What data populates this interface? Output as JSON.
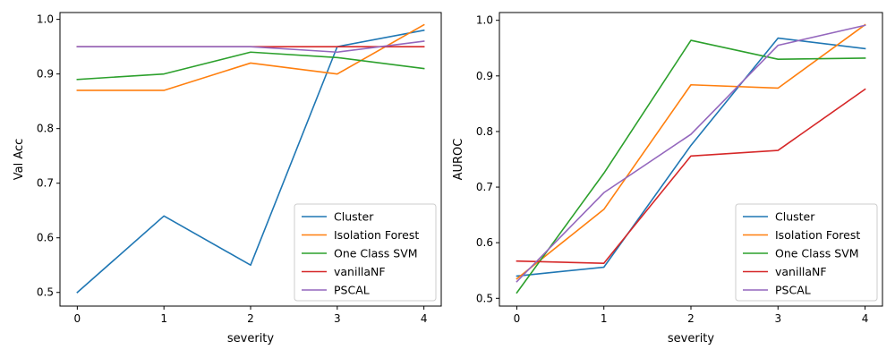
{
  "chart_data": [
    {
      "type": "line",
      "xlabel": "severity",
      "ylabel": "Val Acc",
      "x": [
        0,
        1,
        2,
        3,
        4
      ],
      "xticks": [
        "0",
        "1",
        "2",
        "3",
        "4"
      ],
      "ylim": [
        0.475,
        1.0125
      ],
      "yticks": [
        "0.5",
        "0.6",
        "0.7",
        "0.8",
        "0.9",
        "1.0"
      ],
      "grid": false,
      "legend_position": "lower-right",
      "series": [
        {
          "name": "Cluster",
          "color": "#1f77b4",
          "values": [
            0.5,
            0.64,
            0.55,
            0.95,
            0.98
          ]
        },
        {
          "name": "Isolation Forest",
          "color": "#ff7f0e",
          "values": [
            0.87,
            0.87,
            0.92,
            0.9,
            0.99
          ]
        },
        {
          "name": "One Class SVM",
          "color": "#2ca02c",
          "values": [
            0.89,
            0.9,
            0.94,
            0.93,
            0.91
          ]
        },
        {
          "name": "vanillaNF",
          "color": "#d62728",
          "values": [
            0.95,
            0.95,
            0.95,
            0.95,
            0.95
          ]
        },
        {
          "name": "PSCAL",
          "color": "#9467bd",
          "values": [
            0.95,
            0.95,
            0.95,
            0.94,
            0.96
          ]
        }
      ]
    },
    {
      "type": "line",
      "xlabel": "severity",
      "ylabel": "AUROC",
      "x": [
        0,
        1,
        2,
        3,
        4
      ],
      "xticks": [
        "0",
        "1",
        "2",
        "3",
        "4"
      ],
      "ylim": [
        0.486,
        1.014
      ],
      "yticks": [
        "0.5",
        "0.6",
        "0.7",
        "0.8",
        "0.9",
        "1.0"
      ],
      "grid": false,
      "legend_position": "lower-right",
      "series": [
        {
          "name": "Cluster",
          "color": "#1f77b4",
          "values": [
            0.54,
            0.556,
            0.775,
            0.968,
            0.949
          ]
        },
        {
          "name": "Isolation Forest",
          "color": "#ff7f0e",
          "values": [
            0.535,
            0.66,
            0.884,
            0.878,
            0.992
          ]
        },
        {
          "name": "One Class SVM",
          "color": "#2ca02c",
          "values": [
            0.51,
            0.725,
            0.964,
            0.93,
            0.932
          ]
        },
        {
          "name": "vanillaNF",
          "color": "#d62728",
          "values": [
            0.567,
            0.563,
            0.756,
            0.766,
            0.876
          ]
        },
        {
          "name": "PSCAL",
          "color": "#9467bd",
          "values": [
            0.53,
            0.69,
            0.795,
            0.955,
            0.991
          ]
        }
      ]
    }
  ]
}
